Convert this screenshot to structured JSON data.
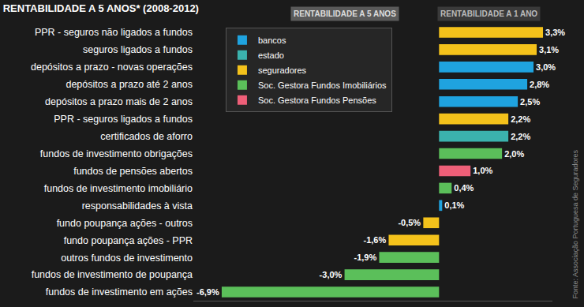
{
  "chart_data": {
    "type": "bar",
    "title": "RENTABILIDADE A 5 ANOS* (2008-2012)",
    "annotations": [
      "RENTABILIDADE A 5 ANOS",
      "RENTABILIDADE A 1 ANO",
      "Fonte: Associação Portuguesa de Seguradores"
    ],
    "orientation": "horizontal",
    "categories": [
      "PPR - seguros não ligados a fundos",
      "seguros ligados a fundos",
      "depósitos a prazo - novas operações",
      "depósitos a prazo até 2 anos",
      "depósitos a prazo mais de 2 anos",
      "PPR - seguros ligados a fundos",
      "certificados de aforro",
      "fundos de investimento obrigações",
      "fundos de pensões abertos",
      "fundos de investimento imobiliário",
      "responsabilidades à vista",
      "fundo poupança ações - outros",
      "fundo poupança ações - PPR",
      "outros fundos de investimento",
      "fundos de investimento de poupança",
      "fundos de investimento em ações"
    ],
    "series": [
      {
        "name": "bancos",
        "color": "#1fa3df",
        "values": [
          null,
          null,
          3.0,
          2.8,
          2.5,
          null,
          null,
          null,
          null,
          null,
          0.1,
          null,
          null,
          null,
          null,
          null
        ],
        "value_labels": [
          null,
          null,
          "3,0%",
          "2,8%",
          "2,5%",
          null,
          null,
          null,
          null,
          null,
          "0,1%",
          null,
          null,
          null,
          null,
          null
        ]
      },
      {
        "name": "estado",
        "color": "#3bb2ad",
        "values": [
          null,
          null,
          null,
          null,
          null,
          null,
          2.2,
          null,
          null,
          null,
          null,
          null,
          null,
          null,
          null,
          null
        ],
        "value_labels": [
          null,
          null,
          null,
          null,
          null,
          null,
          "2,2%",
          null,
          null,
          null,
          null,
          null,
          null,
          null,
          null,
          null
        ]
      },
      {
        "name": "seguradores",
        "color": "#f4c21b",
        "values": [
          3.3,
          3.1,
          null,
          null,
          null,
          2.2,
          null,
          null,
          null,
          null,
          null,
          -0.5,
          -1.6,
          null,
          null,
          null
        ],
        "value_labels": [
          "3,3%",
          "3,1%",
          null,
          null,
          null,
          "2,2%",
          null,
          null,
          null,
          null,
          null,
          "-0,5%",
          "-1,6%",
          null,
          null,
          null
        ]
      },
      {
        "name": "Soc. Gestora Fundos Imobiliários",
        "color": "#5bbf5a",
        "values": [
          null,
          null,
          null,
          null,
          null,
          null,
          null,
          2.0,
          null,
          0.4,
          null,
          null,
          null,
          -1.9,
          -3.0,
          -6.9
        ],
        "value_labels": [
          null,
          null,
          null,
          null,
          null,
          null,
          null,
          "2,0%",
          null,
          "0,4%",
          null,
          null,
          null,
          "-1,9%",
          "-3,0%",
          "-6,9%"
        ]
      },
      {
        "name": "Soc. Gestora Fundos Pensões",
        "color": "#ee5f78",
        "values": [
          null,
          null,
          null,
          null,
          null,
          null,
          null,
          null,
          1.0,
          null,
          null,
          null,
          null,
          null,
          null,
          null
        ],
        "value_labels": [
          null,
          null,
          null,
          null,
          null,
          null,
          null,
          null,
          "1,0%",
          null,
          null,
          null,
          null,
          null,
          null,
          null
        ]
      }
    ],
    "xlim": [
      -7.8,
      3.6
    ],
    "tick_labels": "y",
    "data_labels": true,
    "legend": "top",
    "grid": false
  }
}
